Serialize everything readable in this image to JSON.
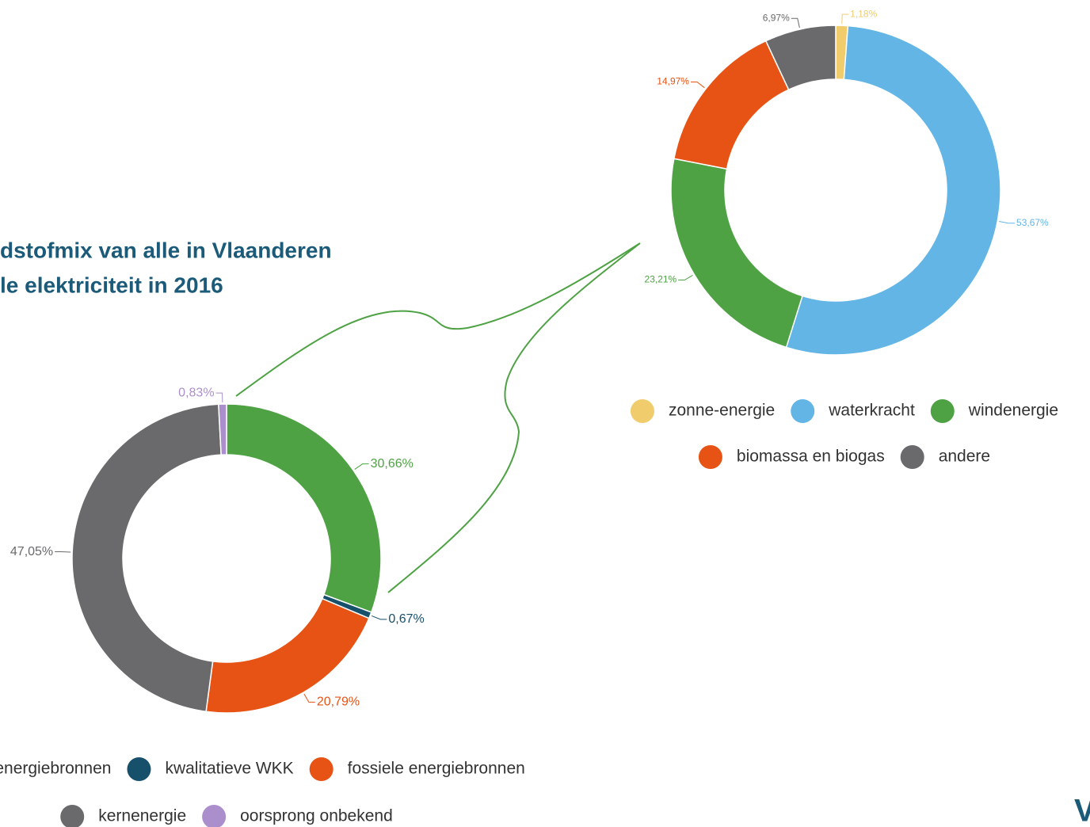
{
  "title_lines": [
    "dstofmix van alle in Vlaanderen",
    "le elektriciteit in 2016"
  ],
  "logo": "V",
  "chart_data": [
    {
      "type": "pie",
      "categories": [
        "are energiebronnen",
        "kwalitatieve WKK",
        "fossiele energiebronnen",
        "kernenergie",
        "oorsprong onbekend"
      ],
      "values": [
        30.66,
        0.67,
        20.79,
        47.05,
        0.83
      ],
      "value_labels": [
        "30,66%",
        "0,67%",
        "20,79%",
        "47,05%",
        "0,83%"
      ],
      "colors": [
        "#4ea244",
        "#17506b",
        "#e65314",
        "#6a6a6d",
        "#ab8fcc"
      ]
    },
    {
      "type": "pie",
      "categories": [
        "zonne-energie",
        "waterkracht",
        "windenergie",
        "biomassa en biogas",
        "andere"
      ],
      "values": [
        1.18,
        53.67,
        23.21,
        14.97,
        6.97
      ],
      "value_labels": [
        "1,18%",
        "53,67%",
        "23,21%",
        "14,97%",
        "6,97%"
      ],
      "colors": [
        "#f0cc6c",
        "#62b5e5",
        "#4ea244",
        "#e65314",
        "#6a6a6d"
      ]
    }
  ]
}
